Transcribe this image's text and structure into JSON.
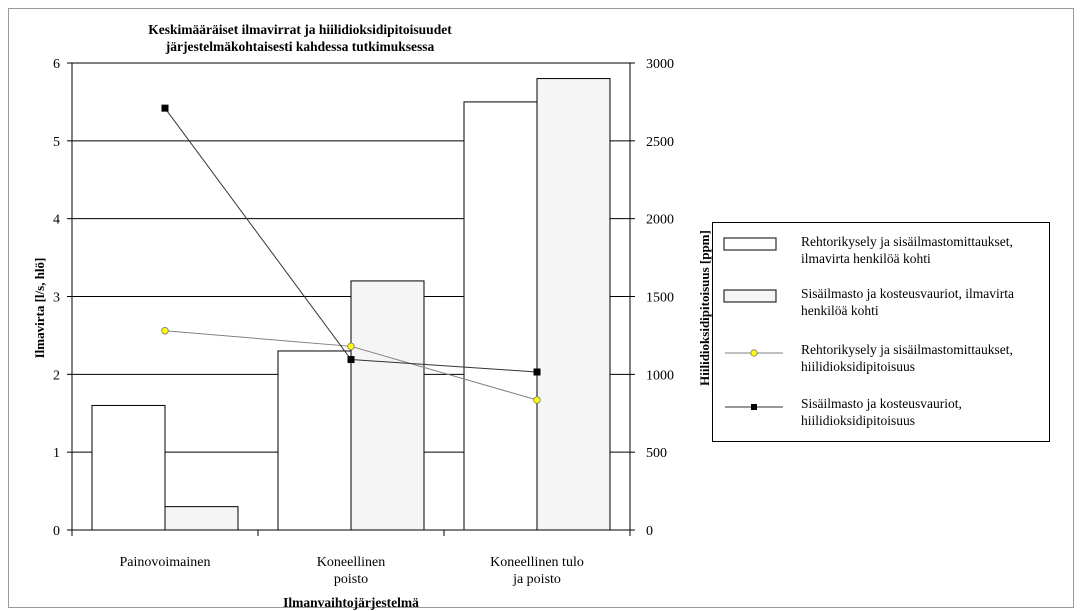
{
  "chart_data": {
    "type": "bar",
    "title_lines": [
      "Keskimääräiset ilmavirrat ja hiilidioksidipitoisuudet",
      "järjestelmäkohtaisesti kahdessa tutkimuksessa"
    ],
    "xlabel": "Ilmanvaihtojärjestelmä",
    "ylabel": "Ilmavirta [l/s, hlö]",
    "y2label": "Hiilidioksidipitoisuus [ppm]",
    "categories": [
      [
        "Painovoimainen"
      ],
      [
        "Koneellinen",
        "poisto"
      ],
      [
        "Koneellinen tulo",
        "ja poisto"
      ]
    ],
    "ylim": [
      0,
      6
    ],
    "y2lim": [
      0,
      3000
    ],
    "yticks": [
      "0",
      "1",
      "2",
      "3",
      "4",
      "5",
      "6"
    ],
    "y2ticks": [
      "0",
      "500",
      "1000",
      "1500",
      "2000",
      "2500",
      "3000"
    ],
    "grid": true,
    "legend_position": "right",
    "series": [
      {
        "name": "Rehtorikysely ja sisäilmastomittaukset, ilmavirta henkilöä kohti",
        "kind": "bar",
        "axis": "left",
        "fill": "#ffffff",
        "values": [
          1.6,
          2.3,
          5.5
        ]
      },
      {
        "name": "Sisäilmasto ja kosteusvauriot, ilmavirta henkilöä kohti",
        "kind": "bar",
        "axis": "left",
        "fill": "#f5f5f5",
        "values": [
          0.3,
          3.2,
          5.8
        ]
      },
      {
        "name": "Rehtorikysely ja sisäilmastomittaukset, hiilidioksidipitoisuus",
        "kind": "line",
        "axis": "right",
        "marker": "circle",
        "marker_color": "#ffff00",
        "line_color": "#808080",
        "values": [
          1280,
          1180,
          835
        ]
      },
      {
        "name": "Sisäilmasto ja kosteusvauriot, hiilidioksidipitoisuus",
        "kind": "line",
        "axis": "right",
        "marker": "square",
        "marker_color": "#000000",
        "line_color": "#333333",
        "values": [
          2710,
          1095,
          1015
        ]
      }
    ],
    "legend_lines": [
      [
        "Rehtorikysely ja sisäilmastomittaukset,",
        "ilmavirta henkilöä kohti"
      ],
      [
        "Sisäilmasto ja kosteusvauriot, ilmavirta",
        "henkilöä kohti"
      ],
      [
        "Rehtorikysely ja sisäilmastomittaukset,",
        "hiilidioksidipitoisuus"
      ],
      [
        "Sisäilmasto ja kosteusvauriot,",
        "hiilidioksidipitoisuus"
      ]
    ]
  }
}
